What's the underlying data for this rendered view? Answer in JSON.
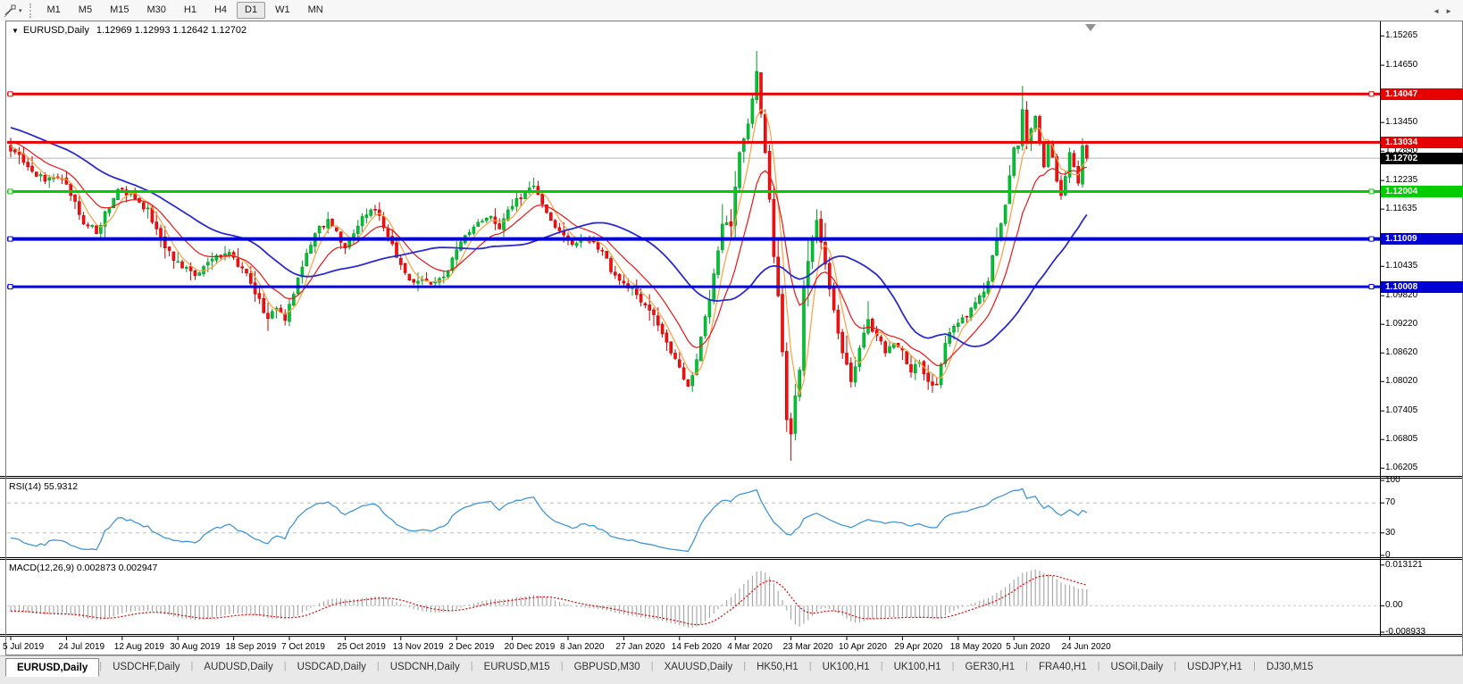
{
  "toolbar": {
    "tool_icon": "crosshair-tool",
    "timeframes": [
      "M1",
      "M5",
      "M15",
      "M30",
      "H1",
      "H4",
      "D1",
      "W1",
      "MN"
    ],
    "active_timeframe": "D1"
  },
  "chart": {
    "symbol_period": "EURUSD,Daily",
    "ohlc": "1.12969 1.12993 1.12642 1.12702"
  },
  "price_axis": {
    "ticks": [
      "1.15265",
      "1.14650",
      "1.13450",
      "1.12850",
      "1.12235",
      "1.11635",
      "1.10435",
      "1.09820",
      "1.09220",
      "1.08620",
      "1.08020",
      "1.07405",
      "1.06805",
      "1.06205"
    ]
  },
  "objects": {
    "hlines": [
      {
        "price": 1.14047,
        "label": "1.14047",
        "color": "#e60000",
        "width": 3,
        "handles": true
      },
      {
        "price": 1.13034,
        "label": "1.13034",
        "color": "#e60000",
        "width": 3,
        "handles": false
      },
      {
        "price": 1.12004,
        "label": "1.12004",
        "color": "#00cc00",
        "width": 3,
        "handles": true
      },
      {
        "price": 1.11009,
        "label": "1.11009",
        "color": "#0000d4",
        "width": 4,
        "handles": true
      },
      {
        "price": 1.10008,
        "label": "1.10008",
        "color": "#0000d4",
        "width": 3,
        "handles": true
      }
    ]
  },
  "current_price": {
    "label": "1.12702",
    "price": 1.12702,
    "badge_bg": "#000000",
    "line_color": "#b4b4b4"
  },
  "rsi_pane": {
    "label": "RSI(14) 55.9312",
    "ticks": [
      {
        "label": "100",
        "value": 100
      },
      {
        "label": "70",
        "value": 70
      },
      {
        "label": "30",
        "value": 30
      },
      {
        "label": "0",
        "value": 0
      }
    ],
    "dashed_levels": [
      70,
      30
    ],
    "line_color": "#4296d8"
  },
  "macd_pane": {
    "label": "MACD(12,26,9) 0.002873 0.002947",
    "ticks": [
      {
        "label": "0.013121",
        "value": 0.013121
      },
      {
        "label": "0.00",
        "value": 0
      },
      {
        "label": "-0.008933",
        "value": -0.008933
      }
    ],
    "histogram_color": "#9a9a9a",
    "signal_color": "#e60000"
  },
  "date_axis": {
    "labels": [
      "5 Jul 2019",
      "24 Jul 2019",
      "12 Aug 2019",
      "30 Aug 2019",
      "18 Sep 2019",
      "7 Oct 2019",
      "25 Oct 2019",
      "13 Nov 2019",
      "2 Dec 2019",
      "20 Dec 2019",
      "8 Jan 2020",
      "27 Jan 2020",
      "14 Feb 2020",
      "4 Mar 2020",
      "23 Mar 2020",
      "10 Apr 2020",
      "29 Apr 2020",
      "18 May 2020",
      "5 Jun 2020",
      "24 Jun 2020"
    ]
  },
  "tabs": {
    "items": [
      "EURUSD,Daily",
      "USDCHF,Daily",
      "AUDUSD,Daily",
      "USDCAD,Daily",
      "USDCNH,Daily",
      "EURUSD,M15",
      "GBPUSD,M30",
      "XAUUSD,Daily",
      "HK50,H1",
      "UK100,H1",
      "UK100,H1",
      "GER30,H1",
      "FRA40,H1",
      "USOil,Daily",
      "USDJPY,H1",
      "DJ30,M15"
    ],
    "active_index": 0
  },
  "chart_data": {
    "type": "candlestick",
    "symbol": "EURUSD",
    "period": "Daily",
    "visible_bars": 252,
    "price_range": [
      1.0606,
      1.1555
    ],
    "up_color": "#00c432",
    "up_stroke": "#009926",
    "down_color": "#f50f0f",
    "down_stroke": "#c80000",
    "anchors": [
      [
        0,
        1.1285
      ],
      [
        2,
        1.1278
      ],
      [
        4,
        1.1252
      ],
      [
        6,
        1.1232
      ],
      [
        8,
        1.1222
      ],
      [
        10,
        1.123
      ],
      [
        12,
        1.1226
      ],
      [
        14,
        1.1192
      ],
      [
        16,
        1.1152
      ],
      [
        18,
        1.1128
      ],
      [
        20,
        1.1112
      ],
      [
        22,
        1.1158
      ],
      [
        24,
        1.1186
      ],
      [
        26,
        1.1205
      ],
      [
        28,
        1.1196
      ],
      [
        30,
        1.1178
      ],
      [
        32,
        1.1166
      ],
      [
        34,
        1.1122
      ],
      [
        36,
        1.1082
      ],
      [
        38,
        1.1056
      ],
      [
        40,
        1.104
      ],
      [
        42,
        1.1034
      ],
      [
        44,
        1.103
      ],
      [
        46,
        1.1052
      ],
      [
        48,
        1.1066
      ],
      [
        50,
        1.107
      ],
      [
        52,
        1.1062
      ],
      [
        54,
        1.104
      ],
      [
        56,
        1.1008
      ],
      [
        58,
        1.0976
      ],
      [
        60,
        1.0934
      ],
      [
        62,
        1.0956
      ],
      [
        64,
        1.093
      ],
      [
        66,
        1.0985
      ],
      [
        68,
        1.1042
      ],
      [
        70,
        1.1088
      ],
      [
        72,
        1.1128
      ],
      [
        74,
        1.1142
      ],
      [
        76,
        1.1118
      ],
      [
        78,
        1.1082
      ],
      [
        80,
        1.1112
      ],
      [
        82,
        1.1148
      ],
      [
        84,
        1.1162
      ],
      [
        86,
        1.115
      ],
      [
        88,
        1.1106
      ],
      [
        90,
        1.1062
      ],
      [
        92,
        1.103
      ],
      [
        94,
        1.101
      ],
      [
        96,
        1.1016
      ],
      [
        98,
        1.1006
      ],
      [
        100,
        1.1018
      ],
      [
        102,
        1.1032
      ],
      [
        104,
        1.1078
      ],
      [
        106,
        1.1108
      ],
      [
        108,
        1.1126
      ],
      [
        110,
        1.1138
      ],
      [
        112,
        1.1148
      ],
      [
        114,
        1.1122
      ],
      [
        116,
        1.1162
      ],
      [
        118,
        1.1186
      ],
      [
        120,
        1.12
      ],
      [
        122,
        1.1212
      ],
      [
        124,
        1.1174
      ],
      [
        126,
        1.114
      ],
      [
        128,
        1.1118
      ],
      [
        130,
        1.1102
      ],
      [
        132,
        1.1092
      ],
      [
        134,
        1.1104
      ],
      [
        136,
        1.1096
      ],
      [
        138,
        1.1076
      ],
      [
        140,
        1.1032
      ],
      [
        142,
        1.1014
      ],
      [
        144,
        1.0998
      ],
      [
        146,
        1.0984
      ],
      [
        148,
        1.0962
      ],
      [
        150,
        1.0942
      ],
      [
        152,
        1.0902
      ],
      [
        154,
        1.0862
      ],
      [
        156,
        1.0832
      ],
      [
        158,
        1.0792
      ],
      [
        160,
        1.0848
      ],
      [
        162,
        1.0938
      ],
      [
        164,
        1.1028
      ],
      [
        166,
        1.1132
      ],
      [
        168,
        1.1128
      ],
      [
        170,
        1.1282
      ],
      [
        172,
        1.1342
      ],
      [
        174,
        1.1452
      ],
      [
        175,
        1.1364
      ],
      [
        176,
        1.1282
      ],
      [
        177,
        1.1184
      ],
      [
        178,
        1.1064
      ],
      [
        179,
        1.0982
      ],
      [
        180,
        1.0864
      ],
      [
        181,
        1.0722
      ],
      [
        182,
        1.0692
      ],
      [
        183,
        1.0772
      ],
      [
        184,
        1.0826
      ],
      [
        185,
        1.1002
      ],
      [
        186,
        1.1054
      ],
      [
        187,
        1.1102
      ],
      [
        188,
        1.114
      ],
      [
        190,
        1.1048
      ],
      [
        192,
        1.0952
      ],
      [
        194,
        1.0862
      ],
      [
        196,
        1.0802
      ],
      [
        198,
        1.0872
      ],
      [
        200,
        1.0932
      ],
      [
        202,
        1.0898
      ],
      [
        204,
        1.0862
      ],
      [
        206,
        1.0882
      ],
      [
        208,
        1.0868
      ],
      [
        210,
        1.0822
      ],
      [
        212,
        1.0842
      ],
      [
        214,
        1.0802
      ],
      [
        216,
        1.0796
      ],
      [
        218,
        1.0882
      ],
      [
        220,
        1.0918
      ],
      [
        222,
        1.0936
      ],
      [
        224,
        1.0956
      ],
      [
        226,
        1.0982
      ],
      [
        228,
        1.1012
      ],
      [
        230,
        1.1102
      ],
      [
        232,
        1.1172
      ],
      [
        234,
        1.1292
      ],
      [
        235,
        1.1296
      ],
      [
        236,
        1.1372
      ],
      [
        237,
        1.1302
      ],
      [
        238,
        1.1332
      ],
      [
        239,
        1.1358
      ],
      [
        240,
        1.1302
      ],
      [
        241,
        1.1252
      ],
      [
        242,
        1.1302
      ],
      [
        243,
        1.1272
      ],
      [
        244,
        1.1222
      ],
      [
        245,
        1.1192
      ],
      [
        246,
        1.1232
      ],
      [
        247,
        1.1282
      ],
      [
        248,
        1.1252
      ],
      [
        249,
        1.1218
      ],
      [
        250,
        1.1296
      ],
      [
        251,
        1.12702
      ]
    ],
    "key_extremes": [
      {
        "index": 174,
        "high": 1.1495
      },
      {
        "index": 181,
        "low": 1.07
      },
      {
        "index": 182,
        "low": 1.0636
      },
      {
        "index": 236,
        "high": 1.1422
      },
      {
        "index": 250,
        "high": 1.1312
      }
    ],
    "last_candle": {
      "open": 1.12969,
      "high": 1.12993,
      "low": 1.12642,
      "close": 1.12702
    },
    "moving_averages": [
      {
        "type": "sma",
        "period": 5,
        "color": "#ff9f3c",
        "width": 1.2
      },
      {
        "type": "ema",
        "period": 13,
        "color": "#f01414",
        "width": 1.2
      },
      {
        "type": "sma",
        "period": 34,
        "color": "#2b2bd0",
        "width": 1.8
      }
    ],
    "volatility_zone": {
      "start": 166,
      "end": 200,
      "mult": 2.0
    },
    "indicators": [
      "RSI(14)",
      "MACD(12,26,9)"
    ]
  }
}
